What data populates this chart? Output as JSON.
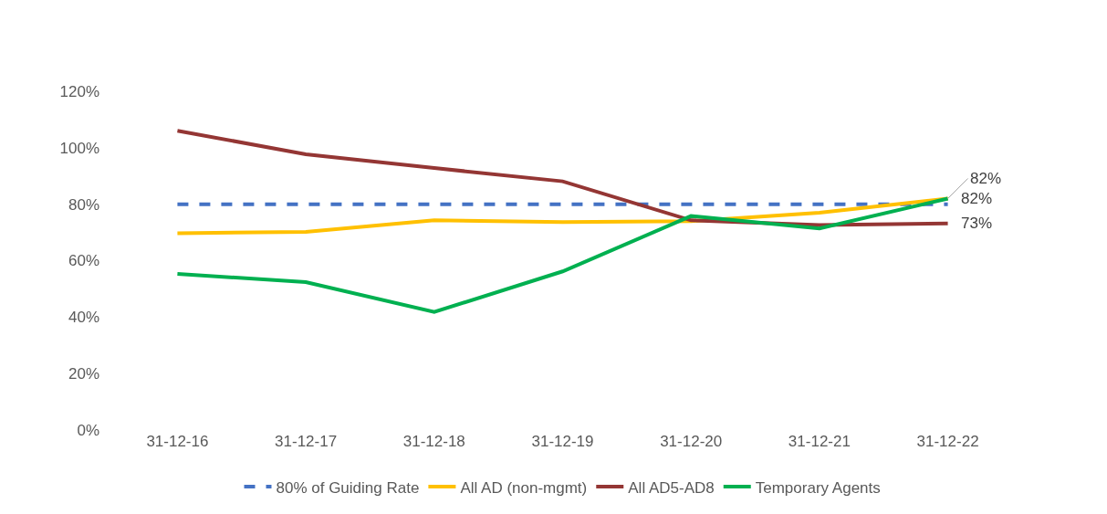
{
  "chart_data": {
    "type": "line",
    "categories": [
      "31-12-16",
      "31-12-17",
      "31-12-18",
      "31-12-19",
      "31-12-20",
      "31-12-21",
      "31-12-22"
    ],
    "series": [
      {
        "name": "80% of Guiding Rate",
        "color": "#4472c4",
        "line_style": "dashed",
        "values": [
          80,
          80,
          80,
          80,
          80,
          80,
          80
        ]
      },
      {
        "name": "All AD (non-mgmt)",
        "color": "#ffc000",
        "values": [
          69.7,
          70.2,
          74.3,
          73.7,
          74,
          77,
          82
        ],
        "value_labels": [
          null,
          null,
          null,
          null,
          null,
          null,
          "82%"
        ]
      },
      {
        "name": "All AD5-AD8",
        "color": "#943634",
        "values": [
          106,
          97.7,
          92.8,
          88.1,
          74.3,
          72.6,
          73.2
        ],
        "value_labels": [
          null,
          null,
          null,
          null,
          null,
          null,
          "73%"
        ]
      },
      {
        "name": "Temporary Agents",
        "color": "#00b050",
        "values": [
          55.3,
          52.4,
          41.8,
          56.2,
          75.8,
          71.4,
          82
        ],
        "value_labels": [
          null,
          null,
          null,
          null,
          null,
          null,
          "82%"
        ]
      }
    ],
    "ylim": [
      0,
      120
    ],
    "yticks": [
      {
        "value": 0,
        "label": "0%"
      },
      {
        "value": 20,
        "label": "20%"
      },
      {
        "value": 40,
        "label": "40%"
      },
      {
        "value": 60,
        "label": "60%"
      },
      {
        "value": 80,
        "label": "80%"
      },
      {
        "value": 100,
        "label": "100%"
      },
      {
        "value": 120,
        "label": "120%"
      }
    ],
    "grid": false,
    "legend": "bottom",
    "line_style": "solid",
    "marker": "none"
  }
}
